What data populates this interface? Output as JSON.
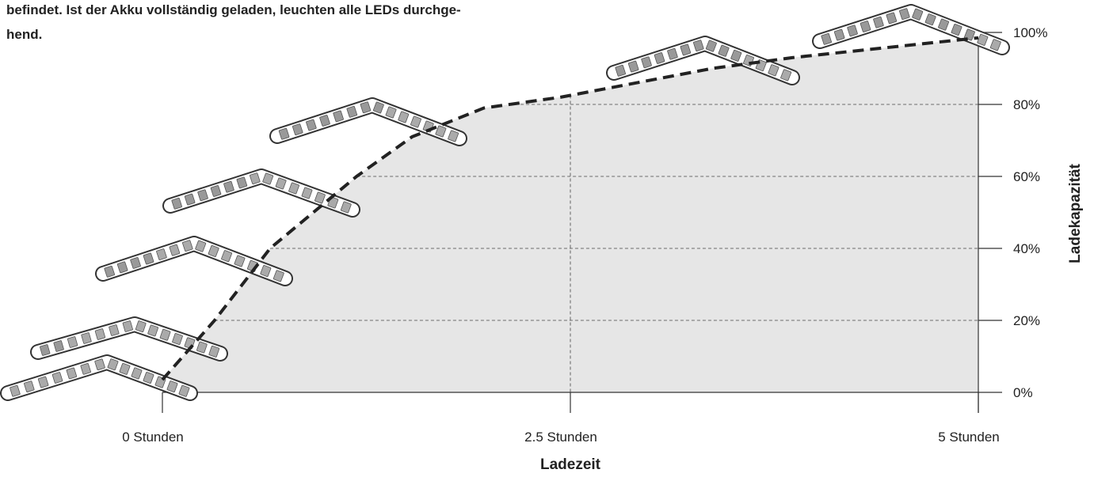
{
  "intro": [
    "befindet. Ist der Akku vollständig geladen, leuchten alle LEDs durchge-",
    "hend."
  ],
  "chart_data": {
    "type": "line",
    "x": [
      0,
      0.32,
      0.66,
      1.19,
      1.53,
      1.97,
      2.44,
      3.37,
      3.86,
      5
    ],
    "values": [
      3.5,
      20,
      40,
      60,
      71,
      79,
      82,
      90,
      93,
      98.5
    ],
    "color": "#222222",
    "area_color": "#e6e6e6",
    "grid": true,
    "xlim": [
      0,
      5
    ],
    "xticks": [
      {
        "value": 0,
        "label": "0 Stunden"
      },
      {
        "value": 2.5,
        "label": "2.5 Stunden"
      },
      {
        "value": 5,
        "label": "5 Stunden"
      }
    ],
    "ylim": [
      0,
      100
    ],
    "yticks": [
      {
        "value": 0,
        "label": "0%"
      },
      {
        "value": 20,
        "label": "20%"
      },
      {
        "value": 40,
        "label": "40%"
      },
      {
        "value": 60,
        "label": "60%"
      },
      {
        "value": 80,
        "label": "80%"
      },
      {
        "value": 100,
        "label": "100%"
      }
    ],
    "xlabel": "Ladezeit",
    "ylabel": "Ladekapazität"
  }
}
